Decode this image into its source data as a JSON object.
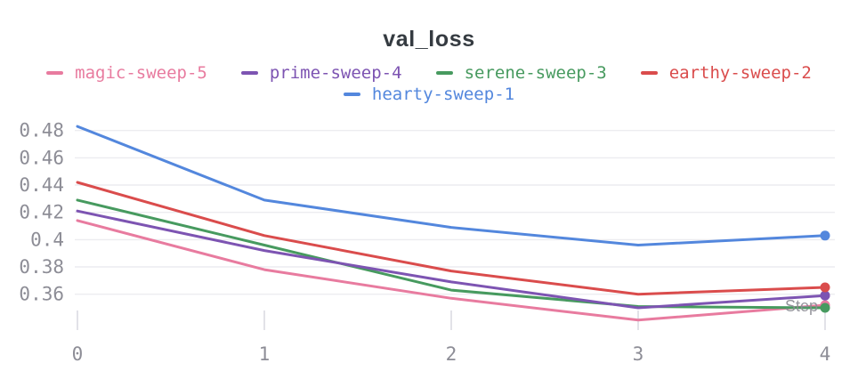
{
  "chart_data": {
    "type": "line",
    "title": "val_loss",
    "xlabel": "Step",
    "ylabel": "",
    "x": [
      0,
      1,
      2,
      3,
      4
    ],
    "xtick_labels": [
      "0",
      "1",
      "2",
      "3",
      "4"
    ],
    "yticks": [
      0.48,
      0.46,
      0.44,
      0.42,
      0.4,
      0.38,
      0.36
    ],
    "ytick_labels": [
      "0.48",
      "0.46",
      "0.44",
      "0.42",
      "0.4",
      "0.38",
      "0.36"
    ],
    "xlim": [
      0,
      4
    ],
    "ylim": [
      0.335,
      0.49
    ],
    "grid": "horizontal",
    "legend_position": "top",
    "endpoint_markers": true,
    "series": [
      {
        "name": "magic-sweep-5",
        "color": "#E87B9F",
        "values": [
          0.414,
          0.378,
          0.357,
          0.341,
          0.352
        ]
      },
      {
        "name": "prime-sweep-4",
        "color": "#7D54B2",
        "values": [
          0.421,
          0.392,
          0.369,
          0.35,
          0.359
        ]
      },
      {
        "name": "serene-sweep-3",
        "color": "#479A5F",
        "values": [
          0.429,
          0.396,
          0.363,
          0.351,
          0.35
        ]
      },
      {
        "name": "earthy-sweep-2",
        "color": "#DA4C4C",
        "values": [
          0.442,
          0.403,
          0.377,
          0.36,
          0.365
        ]
      },
      {
        "name": "hearty-sweep-1",
        "color": "#5387DD",
        "values": [
          0.483,
          0.429,
          0.409,
          0.396,
          0.403
        ]
      }
    ]
  },
  "colors": {
    "title": "#353b41",
    "tick_label": "#8d8d96",
    "gridline": "#ececf0",
    "tick_mark": "#e2e2e8",
    "axis_title": "#8b8b93",
    "background": "#ffffff"
  }
}
